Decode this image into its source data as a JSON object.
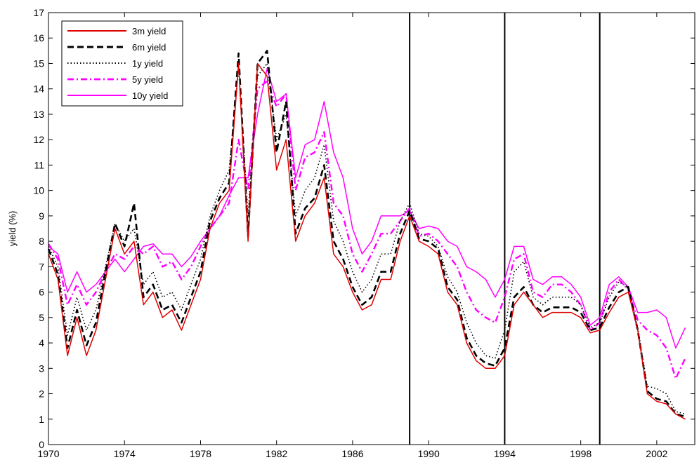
{
  "chart_data": {
    "type": "line",
    "title": "",
    "xlabel": "",
    "ylabel": "yield (%)",
    "xlim": [
      1970,
      2004
    ],
    "ylim": [
      0,
      17
    ],
    "x_ticks": [
      1970,
      1974,
      1978,
      1982,
      1986,
      1990,
      1994,
      1998,
      2002
    ],
    "x_tick_labels": [
      "1970",
      "1974",
      "1978",
      "1982",
      "1986",
      "1990",
      "1994",
      "1998",
      "2002"
    ],
    "y_ticks": [
      0,
      1,
      2,
      3,
      4,
      5,
      6,
      7,
      8,
      9,
      10,
      11,
      12,
      13,
      14,
      15,
      16,
      17
    ],
    "y_tick_labels": [
      "0",
      "1",
      "2",
      "3",
      "4",
      "5",
      "6",
      "7",
      "8",
      "9",
      "10",
      "11",
      "12",
      "13",
      "14",
      "15",
      "16",
      "17"
    ],
    "grid": false,
    "legend_position": "top-left",
    "vertical_lines": [
      1989,
      1994,
      1999
    ],
    "x": [
      1970.0,
      1970.5,
      1971.0,
      1971.5,
      1972.0,
      1972.5,
      1973.0,
      1973.5,
      1974.0,
      1974.5,
      1975.0,
      1975.5,
      1976.0,
      1976.5,
      1977.0,
      1977.5,
      1978.0,
      1978.5,
      1979.0,
      1979.5,
      1980.0,
      1980.5,
      1981.0,
      1981.5,
      1982.0,
      1982.5,
      1983.0,
      1983.5,
      1984.0,
      1984.5,
      1985.0,
      1985.5,
      1986.0,
      1986.5,
      1987.0,
      1987.5,
      1988.0,
      1988.5,
      1989.0,
      1989.5,
      1990.0,
      1990.5,
      1991.0,
      1991.5,
      1992.0,
      1992.5,
      1993.0,
      1993.5,
      1994.0,
      1994.5,
      1995.0,
      1995.5,
      1996.0,
      1996.5,
      1997.0,
      1997.5,
      1998.0,
      1998.5,
      1999.0,
      1999.5,
      2000.0,
      2000.5,
      2001.0,
      2001.5,
      2002.0,
      2002.5,
      2003.0,
      2003.5
    ],
    "series": [
      {
        "name": "3m yield",
        "color": "#e00000",
        "dash": "solid",
        "values": [
          7.5,
          6.5,
          3.5,
          5.0,
          3.5,
          4.5,
          6.5,
          8.5,
          7.5,
          8.0,
          5.5,
          6.0,
          5.0,
          5.3,
          4.5,
          5.5,
          6.5,
          8.5,
          9.5,
          10.0,
          15.0,
          8.0,
          15.0,
          14.5,
          10.8,
          12.0,
          8.0,
          9.0,
          9.5,
          10.5,
          7.5,
          7.0,
          6.0,
          5.3,
          5.5,
          6.5,
          6.5,
          8.0,
          9.0,
          8.0,
          7.8,
          7.5,
          6.0,
          5.5,
          4.0,
          3.3,
          3.0,
          3.0,
          3.5,
          5.5,
          6.0,
          5.5,
          5.0,
          5.2,
          5.2,
          5.2,
          5.0,
          4.4,
          4.5,
          5.2,
          5.8,
          6.0,
          4.5,
          2.0,
          1.7,
          1.6,
          1.2,
          1.0
        ]
      },
      {
        "name": "6m yield",
        "color": "#000000",
        "dash": "dashed",
        "values": [
          7.7,
          6.7,
          3.8,
          5.3,
          3.9,
          4.8,
          6.8,
          8.7,
          7.8,
          9.5,
          5.8,
          6.3,
          5.3,
          5.5,
          4.8,
          5.8,
          6.8,
          8.8,
          9.7,
          10.3,
          15.4,
          8.2,
          15.0,
          15.5,
          11.5,
          13.5,
          8.3,
          9.3,
          9.7,
          11.0,
          8.0,
          7.3,
          6.2,
          5.5,
          5.8,
          6.8,
          6.8,
          8.3,
          9.2,
          8.1,
          8.0,
          7.7,
          6.2,
          5.7,
          4.2,
          3.5,
          3.2,
          3.1,
          3.8,
          5.8,
          6.2,
          5.5,
          5.2,
          5.4,
          5.4,
          5.4,
          5.2,
          4.5,
          4.6,
          5.4,
          6.0,
          6.2,
          4.5,
          2.1,
          1.8,
          1.7,
          1.2,
          1.1
        ]
      },
      {
        "name": "1y yield",
        "color": "#000000",
        "dash": "dotted",
        "values": [
          7.8,
          7.0,
          4.3,
          5.8,
          4.5,
          5.3,
          7.0,
          8.7,
          8.0,
          8.5,
          6.3,
          6.8,
          5.8,
          6.0,
          5.3,
          6.3,
          7.3,
          9.0,
          10.0,
          10.8,
          14.8,
          9.0,
          14.5,
          15.0,
          12.0,
          13.0,
          9.0,
          10.0,
          10.5,
          11.8,
          8.8,
          8.0,
          6.8,
          6.0,
          6.5,
          7.5,
          7.5,
          8.8,
          9.5,
          8.3,
          8.2,
          7.8,
          6.6,
          6.0,
          4.8,
          4.0,
          3.5,
          3.4,
          4.5,
          6.8,
          7.2,
          5.8,
          5.5,
          5.8,
          5.8,
          5.8,
          5.5,
          4.6,
          4.8,
          5.8,
          6.4,
          6.2,
          4.6,
          2.3,
          2.2,
          2.0,
          1.3,
          1.2
        ]
      },
      {
        "name": "5y yield",
        "color": "#ff00ff",
        "dash": "dashdot",
        "values": [
          7.9,
          7.3,
          5.5,
          6.3,
          5.5,
          6.0,
          6.8,
          7.5,
          7.3,
          7.8,
          7.5,
          7.8,
          7.0,
          7.2,
          6.5,
          7.0,
          7.8,
          8.5,
          9.0,
          9.5,
          12.0,
          10.0,
          14.0,
          14.3,
          13.3,
          13.8,
          10.0,
          11.3,
          11.5,
          12.3,
          9.5,
          9.0,
          7.5,
          6.8,
          7.5,
          8.3,
          8.3,
          8.8,
          9.3,
          8.2,
          8.3,
          8.0,
          7.5,
          7.0,
          6.0,
          5.3,
          5.0,
          4.8,
          5.8,
          7.3,
          7.5,
          6.0,
          5.8,
          6.3,
          6.3,
          6.0,
          5.5,
          4.5,
          4.8,
          6.0,
          6.5,
          6.1,
          4.9,
          4.5,
          4.3,
          3.8,
          2.6,
          3.4
        ]
      },
      {
        "name": "10y yield",
        "color": "#ff00ff",
        "dash": "solid",
        "values": [
          7.8,
          7.5,
          6.0,
          6.8,
          6.0,
          6.3,
          6.8,
          7.3,
          6.8,
          7.3,
          7.8,
          7.9,
          7.5,
          7.5,
          7.0,
          7.4,
          8.0,
          8.5,
          9.0,
          9.8,
          10.5,
          10.5,
          13.0,
          14.8,
          13.5,
          13.8,
          10.5,
          11.8,
          12.0,
          13.5,
          11.5,
          10.5,
          8.5,
          7.5,
          8.0,
          9.0,
          9.0,
          9.0,
          9.2,
          8.5,
          8.6,
          8.5,
          8.0,
          7.8,
          7.0,
          6.8,
          6.5,
          5.8,
          6.5,
          7.8,
          7.8,
          6.5,
          6.3,
          6.6,
          6.6,
          6.3,
          5.8,
          4.7,
          5.0,
          6.3,
          6.6,
          6.2,
          5.2,
          5.2,
          5.3,
          5.0,
          3.8,
          4.6
        ]
      }
    ]
  }
}
